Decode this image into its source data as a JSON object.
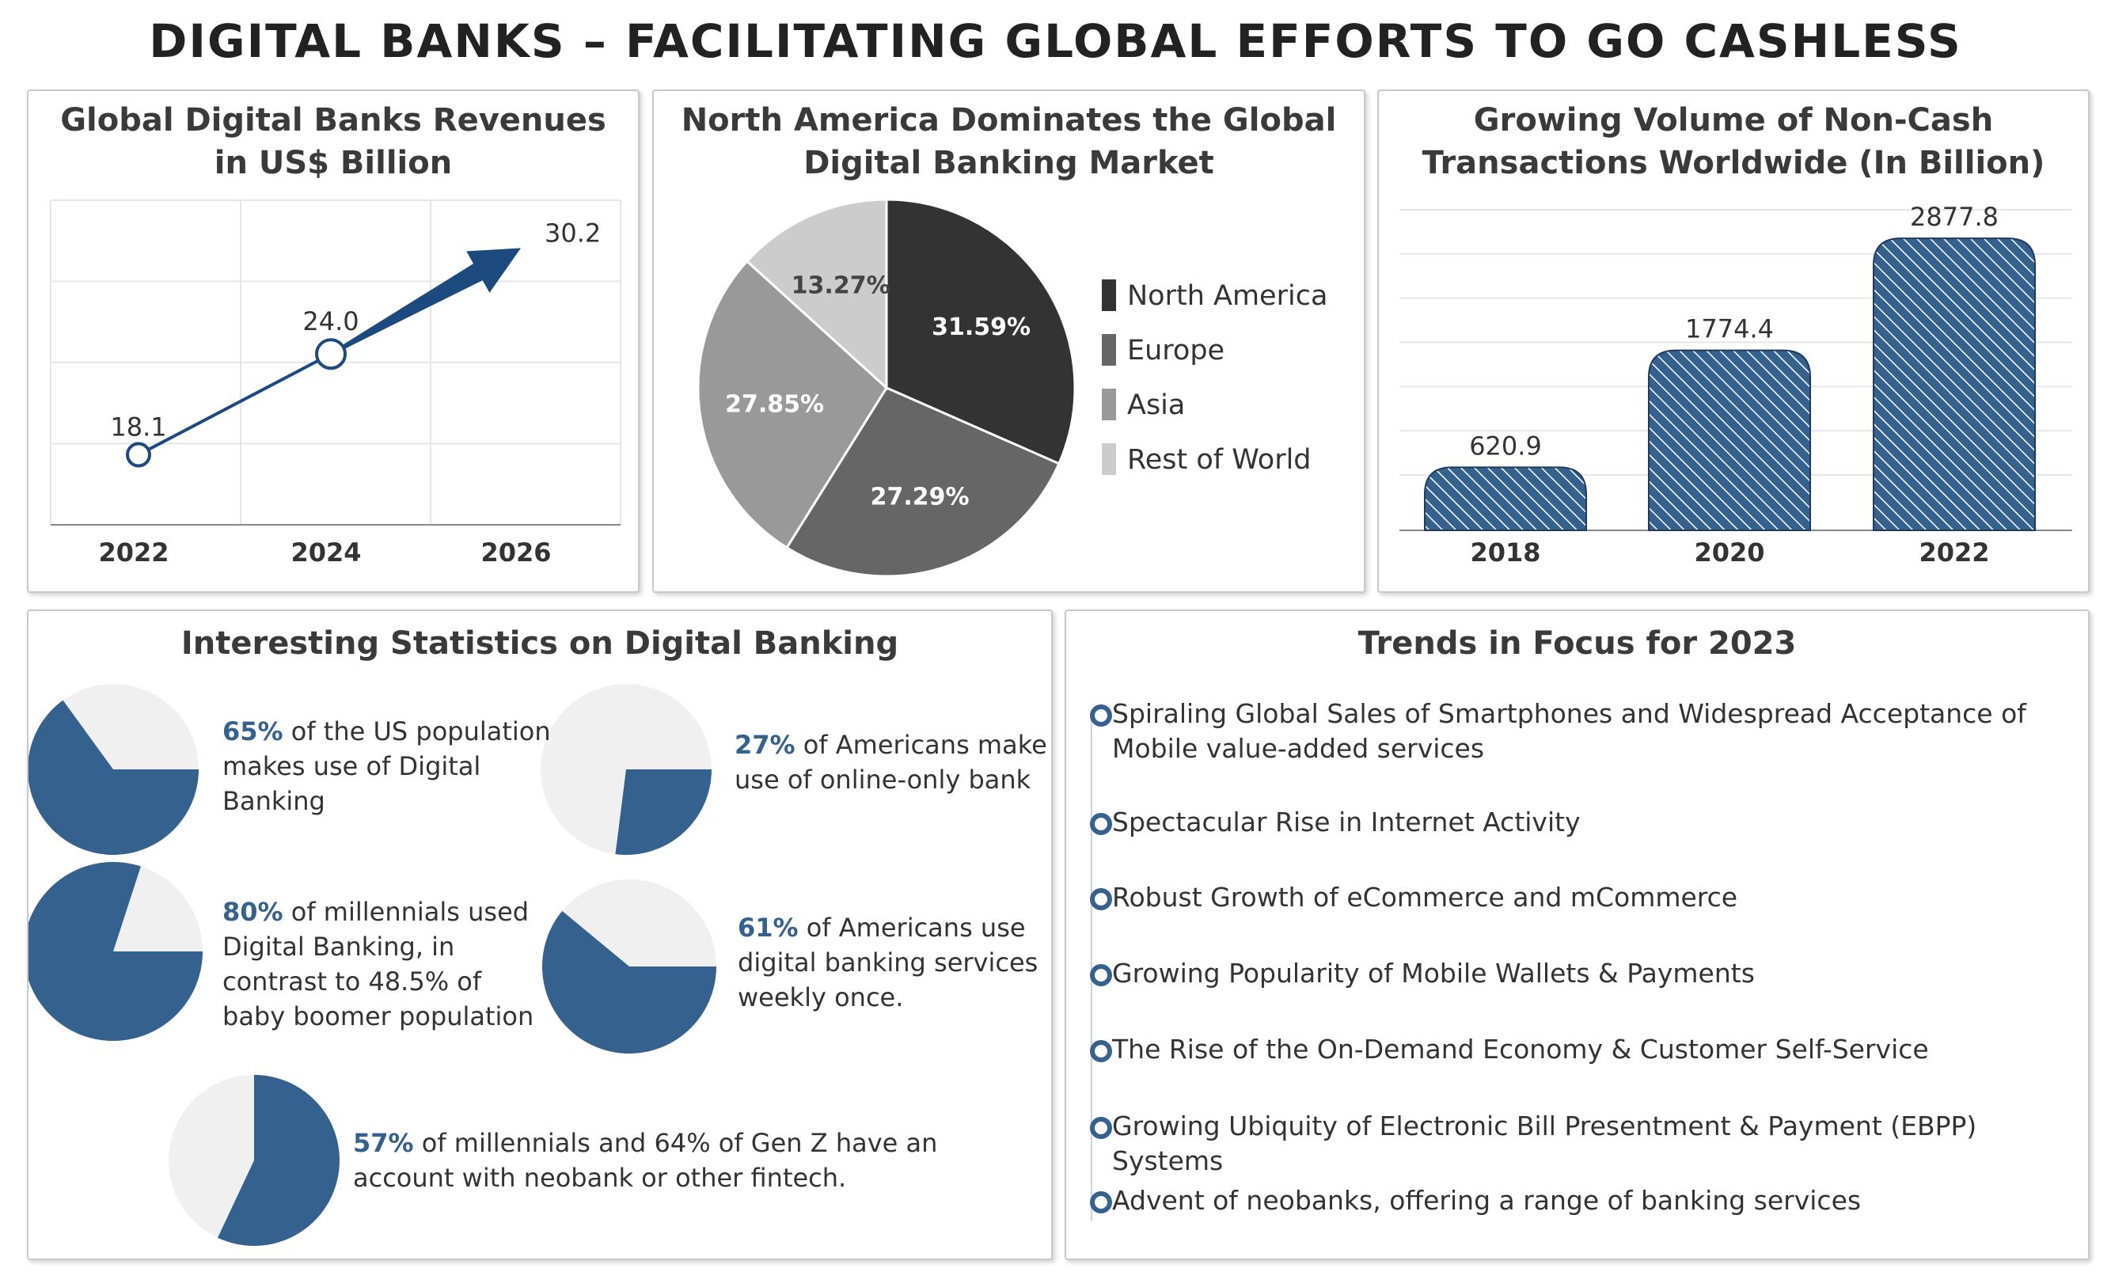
{
  "main_title": "DIGITAL BANKS – FACILITATING GLOBAL EFFORTS TO GO CASHLESS",
  "colors": {
    "accent": "#35618f",
    "dark_blue": "#1d4a7e",
    "pie_light": "#f0f0f0",
    "na": "#333333",
    "europe": "#666666",
    "asia": "#999999",
    "row": "#cccccc"
  },
  "revenue_chart": {
    "title_line1": "Global Digital Banks Revenues",
    "title_line2": "in US$ Billion",
    "chart_data": {
      "type": "line",
      "x": [
        "2022",
        "2024",
        "2026"
      ],
      "values": [
        18.1,
        24.0,
        30.2
      ],
      "value_labels": [
        "18.1",
        "24.0",
        "30.2"
      ]
    }
  },
  "market_chart": {
    "title_line1": "North America Dominates the Global",
    "title_line2": "Digital Banking Market",
    "chart_data": {
      "type": "pie",
      "labels": [
        "North America",
        "Europe",
        "Asia",
        "Rest of World"
      ],
      "values": [
        31.59,
        27.29,
        27.85,
        13.27
      ],
      "value_labels": [
        "31.59%",
        "27.29%",
        "27.85%",
        "13.27%"
      ],
      "legend": "right"
    }
  },
  "transactions_chart": {
    "title_line1": "Growing Volume of Non-Cash",
    "title_line2": "Transactions Worldwide (In Billion)",
    "chart_data": {
      "type": "bar",
      "categories": [
        "2018",
        "2020",
        "2022"
      ],
      "values": [
        620.9,
        1774.4,
        2877.8
      ],
      "value_labels": [
        "620.9",
        "1774.4",
        "2877.8"
      ]
    }
  },
  "statistics": {
    "title": "Interesting Statistics on Digital Banking",
    "items": [
      {
        "pct": "65%",
        "value": 65,
        "lines": [
          "of the US population",
          "makes use of Digital",
          "Banking"
        ]
      },
      {
        "pct": "27%",
        "value": 27,
        "lines": [
          "of Americans make",
          "use of online-only bank"
        ]
      },
      {
        "pct": "80%",
        "value": 80,
        "lines": [
          "of millennials used",
          "Digital Banking, in",
          "contrast to 48.5% of",
          "baby boomer population"
        ]
      },
      {
        "pct": "61%",
        "value": 61,
        "lines": [
          "of Americans use",
          "digital banking services",
          "weekly once."
        ]
      },
      {
        "pct": "57%",
        "value": 57,
        "lines": [
          "of millennials and 64% of Gen Z have an",
          "account with neobank or other fintech."
        ]
      }
    ]
  },
  "trends": {
    "title": "Trends in Focus for 2023",
    "items": [
      [
        "Spiraling Global Sales of Smartphones and Widespread Acceptance of",
        "Mobile value-added services"
      ],
      [
        "Spectacular Rise in Internet Activity"
      ],
      [
        "Robust Growth of eCommerce and mCommerce"
      ],
      [
        "Growing Popularity of Mobile Wallets & Payments"
      ],
      [
        "The Rise of the On-Demand Economy & Customer Self-Service"
      ],
      [
        "Growing Ubiquity of Electronic Bill Presentment & Payment (EBPP) Systems"
      ],
      [
        "Advent of neobanks, offering a range of banking services"
      ]
    ]
  }
}
